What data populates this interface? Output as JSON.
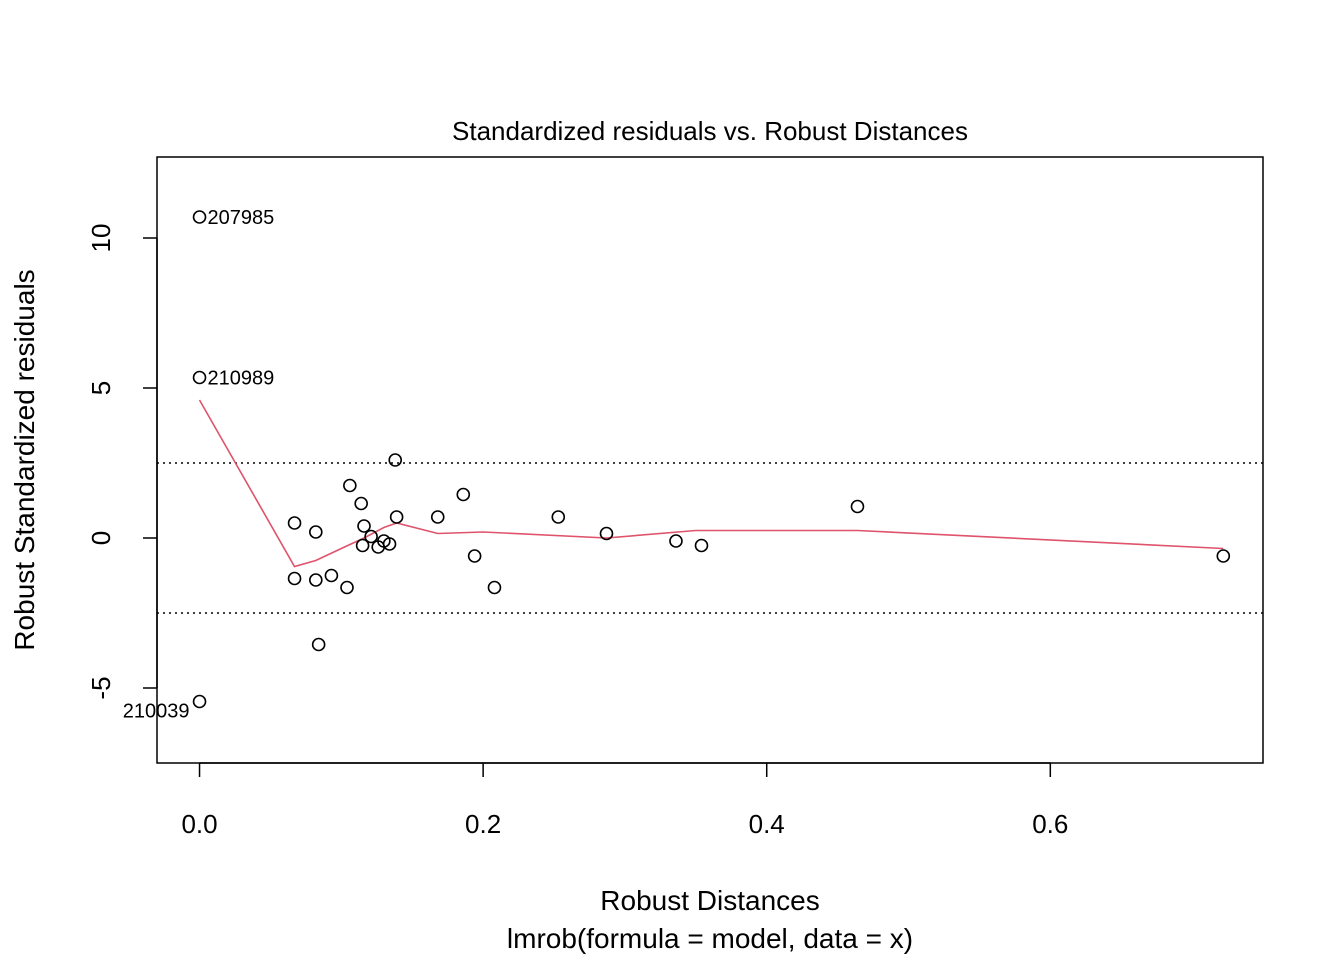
{
  "chart_data": {
    "type": "scatter",
    "title": "Standardized residuals vs. Robust Distances",
    "xlabel": "Robust Distances",
    "sublabel": "lmrob(formula = model, data = x)",
    "ylabel": "Robust Standardized residuals",
    "xlim": [
      -0.03,
      0.75
    ],
    "ylim": [
      -7.5,
      12.7
    ],
    "x_ticks": [
      {
        "value": 0.0,
        "label": "0.0"
      },
      {
        "value": 0.2,
        "label": "0.2"
      },
      {
        "value": 0.4,
        "label": "0.4"
      },
      {
        "value": 0.6,
        "label": "0.6"
      }
    ],
    "y_ticks": [
      {
        "value": -5,
        "label": "-5"
      },
      {
        "value": 0,
        "label": "0"
      },
      {
        "value": 5,
        "label": "5"
      },
      {
        "value": 10,
        "label": "10"
      }
    ],
    "reference_lines": [
      2.5,
      -2.5
    ],
    "points": [
      {
        "x": 0.0,
        "y": 10.7,
        "label": "207985",
        "label_side": "right"
      },
      {
        "x": 0.0,
        "y": 5.35,
        "label": "210989",
        "label_side": "right"
      },
      {
        "x": 0.0,
        "y": -5.45,
        "label": "210039",
        "label_side": "left"
      },
      {
        "x": 0.067,
        "y": -1.35
      },
      {
        "x": 0.067,
        "y": 0.5
      },
      {
        "x": 0.082,
        "y": -1.4
      },
      {
        "x": 0.082,
        "y": 0.2
      },
      {
        "x": 0.084,
        "y": -3.55
      },
      {
        "x": 0.093,
        "y": -1.25
      },
      {
        "x": 0.104,
        "y": -1.65
      },
      {
        "x": 0.106,
        "y": 1.75
      },
      {
        "x": 0.114,
        "y": 1.15
      },
      {
        "x": 0.115,
        "y": -0.25
      },
      {
        "x": 0.116,
        "y": 0.4
      },
      {
        "x": 0.121,
        "y": 0.05
      },
      {
        "x": 0.126,
        "y": -0.3
      },
      {
        "x": 0.13,
        "y": -0.1
      },
      {
        "x": 0.134,
        "y": -0.2
      },
      {
        "x": 0.138,
        "y": 2.6
      },
      {
        "x": 0.139,
        "y": 0.7
      },
      {
        "x": 0.168,
        "y": 0.7
      },
      {
        "x": 0.186,
        "y": 1.45
      },
      {
        "x": 0.194,
        "y": -0.6
      },
      {
        "x": 0.208,
        "y": -1.65
      },
      {
        "x": 0.253,
        "y": 0.7
      },
      {
        "x": 0.287,
        "y": 0.15
      },
      {
        "x": 0.336,
        "y": -0.1
      },
      {
        "x": 0.354,
        "y": -0.25
      },
      {
        "x": 0.464,
        "y": 1.05
      },
      {
        "x": 0.722,
        "y": -0.6
      }
    ],
    "smooth_line": {
      "color": "#DF536B",
      "x": [
        0.0,
        0.067,
        0.082,
        0.1,
        0.116,
        0.13,
        0.139,
        0.168,
        0.2,
        0.287,
        0.35,
        0.464,
        0.722
      ],
      "y": [
        4.6,
        -0.95,
        -0.75,
        -0.35,
        0.0,
        0.35,
        0.5,
        0.15,
        0.2,
        0.0,
        0.25,
        0.25,
        -0.35
      ]
    }
  }
}
